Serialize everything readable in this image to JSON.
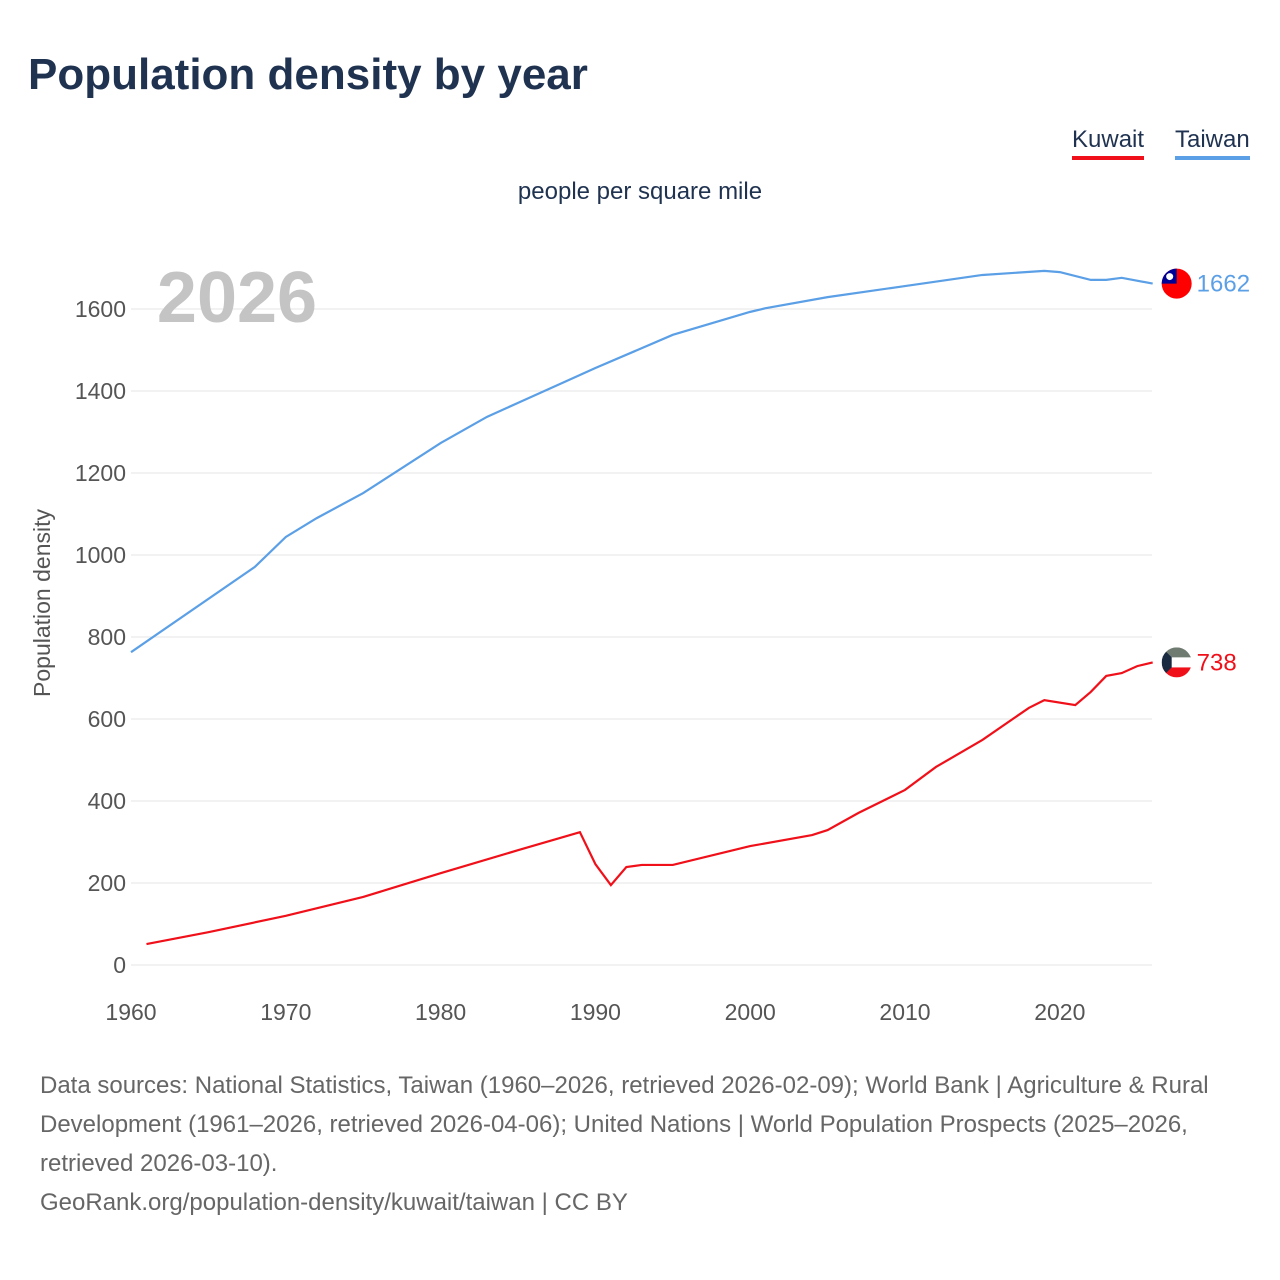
{
  "title": "Population density by year",
  "units": "people per square mile",
  "footer": {
    "sources": "Data sources: National Statistics, Taiwan (1960–2026, retrieved 2026-02-09); World Bank | Agriculture & Rural Development (1961–2026, retrieved 2026-04-06); United Nations | World Population Prospects (2025–2026, retrieved 2026-03-10).",
    "link": "GeoRank.org/population-density/kuwait/taiwan | CC BY"
  },
  "chart_data": {
    "type": "line",
    "title": "Population density by year",
    "ylabel": "Population density",
    "xlabel": "",
    "year_label": "2026",
    "xlim": [
      1960,
      2026
    ],
    "ylim": [
      0,
      1700
    ],
    "xticks": [
      1960,
      1970,
      1980,
      1990,
      2000,
      2010,
      2020
    ],
    "yticks": [
      0,
      200,
      400,
      600,
      800,
      1000,
      1200,
      1400,
      1600
    ],
    "grid": true,
    "legend_position": "top-right",
    "series": [
      {
        "name": "Kuwait",
        "color": "#f0101a",
        "end_label": "738",
        "x": [
          1961,
          1965,
          1970,
          1975,
          1980,
          1985,
          1989,
          1990,
          1991,
          1992,
          1993,
          1995,
          2000,
          2004,
          2005,
          2007,
          2010,
          2012,
          2015,
          2018,
          2019,
          2021,
          2022,
          2023,
          2024,
          2025,
          2026
        ],
        "y": [
          51,
          80,
          120,
          166,
          224,
          280,
          324,
          246,
          195,
          239,
          244,
          244,
          290,
          317,
          329,
          371,
          427,
          483,
          549,
          627,
          646,
          634,
          666,
          705,
          712,
          729,
          738
        ]
      },
      {
        "name": "Taiwan",
        "color": "#5b9fe6",
        "end_label": "1662",
        "x": [
          1960,
          1968,
          1970,
          1972,
          1975,
          1980,
          1983,
          1985,
          1990,
          1995,
          2000,
          2001,
          2005,
          2010,
          2015,
          2019,
          2020,
          2022,
          2023,
          2024,
          2026
        ],
        "y": [
          763,
          971,
          1044,
          1090,
          1151,
          1273,
          1337,
          1371,
          1456,
          1537,
          1593,
          1602,
          1629,
          1656,
          1683,
          1693,
          1690,
          1671,
          1671,
          1676,
          1662
        ]
      }
    ]
  }
}
